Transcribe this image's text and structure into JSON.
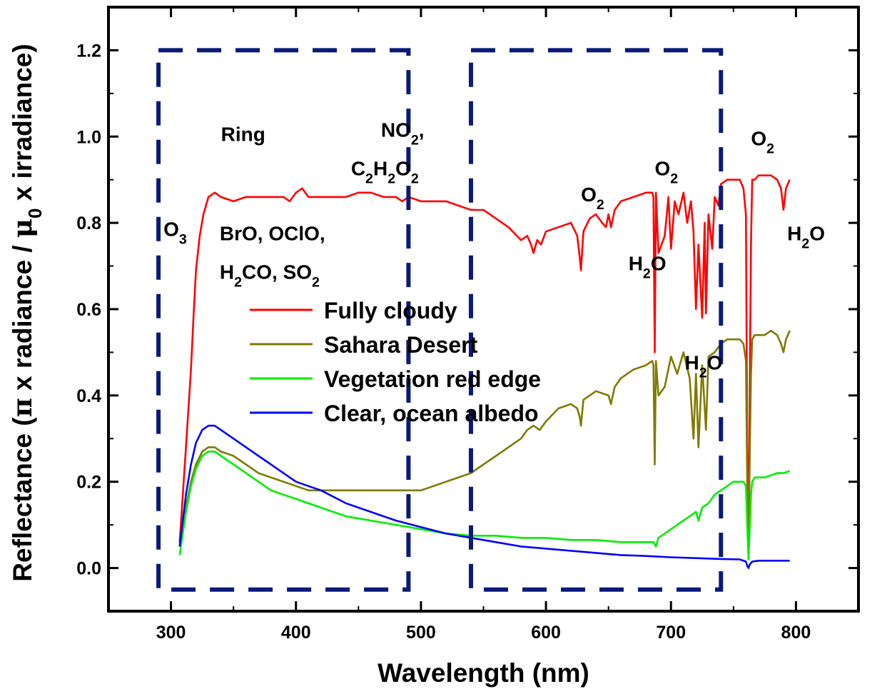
{
  "chart_data": {
    "type": "line",
    "xlabel": "Wavelength (nm)",
    "ylabel": {
      "parts": [
        {
          "t": "Reflectance ("
        },
        {
          "t": "π",
          "greek": true
        },
        {
          "t": " x radiance / "
        },
        {
          "t": "μ",
          "greek": true
        },
        {
          "t": "0",
          "sub": true
        },
        {
          "t": " x irradiance)"
        }
      ]
    },
    "xlim": [
      250,
      850
    ],
    "ylim": [
      -0.1,
      1.3
    ],
    "xticks": [
      300,
      400,
      500,
      600,
      700,
      800
    ],
    "yticks": [
      0.0,
      0.2,
      0.4,
      0.6,
      0.8,
      1.0,
      1.2
    ],
    "ytick_labels": [
      "0.0",
      "0.2",
      "0.4",
      "0.6",
      "0.8",
      "1.0",
      "1.2"
    ],
    "legend_position": "center-left",
    "series": [
      {
        "name": "Fully cloudy",
        "color": "#ff0000",
        "x": [
          307,
          312,
          316,
          318,
          320,
          323,
          326,
          330,
          335,
          340,
          350,
          360,
          370,
          380,
          390,
          395,
          400,
          405,
          410,
          420,
          430,
          440,
          450,
          460,
          470,
          480,
          485,
          490,
          500,
          510,
          520,
          530,
          540,
          550,
          560,
          570,
          580,
          585,
          588,
          590,
          593,
          596,
          600,
          610,
          620,
          625,
          627,
          628,
          630,
          635,
          640,
          645,
          648,
          650,
          652,
          655,
          660,
          670,
          680,
          685,
          686,
          687,
          688,
          690,
          695,
          698,
          700,
          703,
          706,
          710,
          713,
          716,
          718,
          720,
          722,
          725,
          727,
          728,
          730,
          733,
          735,
          738,
          740,
          745,
          750,
          755,
          758,
          760,
          761,
          762,
          763,
          764,
          765,
          767,
          770,
          775,
          780,
          785,
          788,
          790,
          792,
          795
        ],
        "y": [
          0.06,
          0.28,
          0.46,
          0.58,
          0.69,
          0.77,
          0.82,
          0.86,
          0.87,
          0.86,
          0.85,
          0.86,
          0.86,
          0.86,
          0.86,
          0.85,
          0.87,
          0.88,
          0.86,
          0.86,
          0.86,
          0.86,
          0.87,
          0.87,
          0.86,
          0.86,
          0.85,
          0.86,
          0.85,
          0.85,
          0.85,
          0.84,
          0.83,
          0.83,
          0.81,
          0.79,
          0.76,
          0.77,
          0.75,
          0.73,
          0.76,
          0.75,
          0.78,
          0.79,
          0.8,
          0.77,
          0.72,
          0.69,
          0.78,
          0.81,
          0.82,
          0.8,
          0.79,
          0.82,
          0.79,
          0.83,
          0.85,
          0.86,
          0.87,
          0.87,
          0.86,
          0.5,
          0.87,
          0.73,
          0.77,
          0.86,
          0.74,
          0.85,
          0.82,
          0.87,
          0.8,
          0.85,
          0.78,
          0.6,
          0.75,
          0.58,
          0.8,
          0.59,
          0.82,
          0.74,
          0.86,
          0.84,
          0.89,
          0.9,
          0.9,
          0.9,
          0.88,
          0.82,
          0.28,
          0.04,
          0.4,
          0.75,
          0.9,
          0.9,
          0.91,
          0.91,
          0.91,
          0.9,
          0.88,
          0.83,
          0.88,
          0.9
        ]
      },
      {
        "name": "Sahara Desert",
        "color": "#7f7a00",
        "x": [
          307,
          312,
          316,
          320,
          325,
          330,
          335,
          340,
          350,
          360,
          370,
          380,
          390,
          400,
          410,
          420,
          430,
          440,
          450,
          460,
          470,
          480,
          490,
          500,
          510,
          520,
          530,
          540,
          550,
          560,
          570,
          580,
          585,
          590,
          595,
          600,
          610,
          620,
          625,
          627,
          628,
          630,
          640,
          650,
          652,
          655,
          660,
          670,
          680,
          685,
          686,
          687,
          688,
          690,
          695,
          700,
          705,
          710,
          715,
          718,
          720,
          722,
          725,
          728,
          730,
          735,
          740,
          745,
          750,
          755,
          758,
          760,
          761,
          762,
          763,
          764,
          765,
          767,
          770,
          775,
          780,
          785,
          788,
          790,
          792,
          795
        ],
        "y": [
          0.05,
          0.14,
          0.2,
          0.24,
          0.27,
          0.28,
          0.28,
          0.27,
          0.26,
          0.24,
          0.22,
          0.21,
          0.2,
          0.19,
          0.18,
          0.18,
          0.18,
          0.18,
          0.18,
          0.18,
          0.18,
          0.18,
          0.18,
          0.18,
          0.19,
          0.2,
          0.21,
          0.22,
          0.24,
          0.26,
          0.28,
          0.3,
          0.32,
          0.33,
          0.32,
          0.34,
          0.37,
          0.38,
          0.37,
          0.35,
          0.33,
          0.39,
          0.41,
          0.4,
          0.38,
          0.42,
          0.44,
          0.46,
          0.47,
          0.48,
          0.47,
          0.24,
          0.48,
          0.4,
          0.42,
          0.49,
          0.45,
          0.5,
          0.44,
          0.3,
          0.45,
          0.28,
          0.47,
          0.32,
          0.49,
          0.5,
          0.52,
          0.53,
          0.53,
          0.53,
          0.52,
          0.48,
          0.2,
          0.02,
          0.25,
          0.45,
          0.53,
          0.54,
          0.54,
          0.54,
          0.55,
          0.54,
          0.52,
          0.5,
          0.53,
          0.55
        ]
      },
      {
        "name": "Vegetation red edge",
        "color": "#00ee00",
        "x": [
          307,
          312,
          316,
          320,
          325,
          330,
          335,
          340,
          350,
          360,
          370,
          380,
          390,
          400,
          410,
          420,
          440,
          460,
          480,
          500,
          520,
          540,
          560,
          580,
          600,
          620,
          640,
          660,
          680,
          686,
          688,
          690,
          695,
          700,
          705,
          710,
          715,
          720,
          722,
          725,
          730,
          735,
          740,
          745,
          750,
          755,
          758,
          760,
          761,
          762,
          763,
          764,
          765,
          767,
          770,
          775,
          780,
          785,
          790,
          795
        ],
        "y": [
          0.03,
          0.13,
          0.19,
          0.23,
          0.26,
          0.27,
          0.27,
          0.26,
          0.24,
          0.22,
          0.2,
          0.18,
          0.17,
          0.16,
          0.15,
          0.14,
          0.12,
          0.11,
          0.1,
          0.09,
          0.08,
          0.075,
          0.075,
          0.07,
          0.07,
          0.065,
          0.065,
          0.06,
          0.06,
          0.06,
          0.05,
          0.07,
          0.08,
          0.09,
          0.1,
          0.11,
          0.12,
          0.13,
          0.11,
          0.14,
          0.15,
          0.17,
          0.18,
          0.19,
          0.2,
          0.2,
          0.2,
          0.19,
          0.1,
          0.02,
          0.09,
          0.17,
          0.2,
          0.21,
          0.21,
          0.21,
          0.215,
          0.22,
          0.22,
          0.225
        ]
      },
      {
        "name": "Clear, ocean albedo",
        "color": "#0000ff",
        "x": [
          307,
          312,
          316,
          320,
          325,
          330,
          335,
          340,
          350,
          360,
          370,
          380,
          390,
          400,
          410,
          420,
          440,
          460,
          480,
          500,
          520,
          540,
          560,
          580,
          600,
          620,
          640,
          660,
          680,
          700,
          720,
          740,
          755,
          760,
          761,
          762,
          763,
          765,
          770,
          780,
          790,
          795
        ],
        "y": [
          0.05,
          0.17,
          0.24,
          0.29,
          0.32,
          0.33,
          0.33,
          0.32,
          0.3,
          0.28,
          0.26,
          0.24,
          0.22,
          0.2,
          0.19,
          0.18,
          0.15,
          0.13,
          0.11,
          0.095,
          0.08,
          0.07,
          0.06,
          0.05,
          0.045,
          0.04,
          0.035,
          0.03,
          0.028,
          0.025,
          0.023,
          0.021,
          0.02,
          0.015,
          0.005,
          0.0,
          0.008,
          0.015,
          0.017,
          0.017,
          0.017,
          0.017
        ]
      }
    ],
    "regions": [
      {
        "x": [
          290,
          490
        ],
        "y": [
          -0.05,
          1.2
        ]
      },
      {
        "x": [
          540,
          740
        ],
        "y": [
          -0.05,
          1.2
        ]
      }
    ],
    "region_color": "#0a1a7a",
    "annotations": [
      {
        "x": 294,
        "y": 0.77,
        "parts": [
          {
            "t": "O"
          },
          {
            "t": "3",
            "sub": true
          }
        ]
      },
      {
        "x": 340,
        "y": 0.99,
        "parts": [
          {
            "t": "Ring"
          }
        ]
      },
      {
        "x": 339,
        "y": 0.76,
        "parts": [
          {
            "t": "BrO, OClO,"
          }
        ]
      },
      {
        "x": 339,
        "y": 0.67,
        "parts": [
          {
            "t": "H"
          },
          {
            "t": "2",
            "sub": true
          },
          {
            "t": "CO, SO"
          },
          {
            "t": "2",
            "sub": true
          }
        ]
      },
      {
        "x": 468,
        "y": 1.0,
        "parts": [
          {
            "t": "NO"
          },
          {
            "t": "2",
            "sub": true
          },
          {
            "t": ","
          }
        ]
      },
      {
        "x": 444,
        "y": 0.91,
        "parts": [
          {
            "t": "C"
          },
          {
            "t": "2",
            "sub": true
          },
          {
            "t": "H"
          },
          {
            "t": "2",
            "sub": true
          },
          {
            "t": "O"
          },
          {
            "t": "2",
            "sub": true
          }
        ]
      },
      {
        "x": 628,
        "y": 0.85,
        "parts": [
          {
            "t": "O"
          },
          {
            "t": "2",
            "sub": true
          }
        ]
      },
      {
        "x": 666,
        "y": 0.69,
        "parts": [
          {
            "t": "H"
          },
          {
            "t": "2",
            "sub": true
          },
          {
            "t": "O"
          }
        ]
      },
      {
        "x": 687,
        "y": 0.91,
        "parts": [
          {
            "t": "O"
          },
          {
            "t": "2",
            "sub": true
          }
        ]
      },
      {
        "x": 711,
        "y": 0.46,
        "parts": [
          {
            "t": "H"
          },
          {
            "t": "2",
            "sub": true
          },
          {
            "t": "O"
          }
        ]
      },
      {
        "x": 764,
        "y": 0.98,
        "parts": [
          {
            "t": "O"
          },
          {
            "t": "2",
            "sub": true
          }
        ]
      },
      {
        "x": 793,
        "y": 0.76,
        "parts": [
          {
            "t": "H"
          },
          {
            "t": "2",
            "sub": true
          },
          {
            "t": "O"
          }
        ]
      }
    ]
  }
}
